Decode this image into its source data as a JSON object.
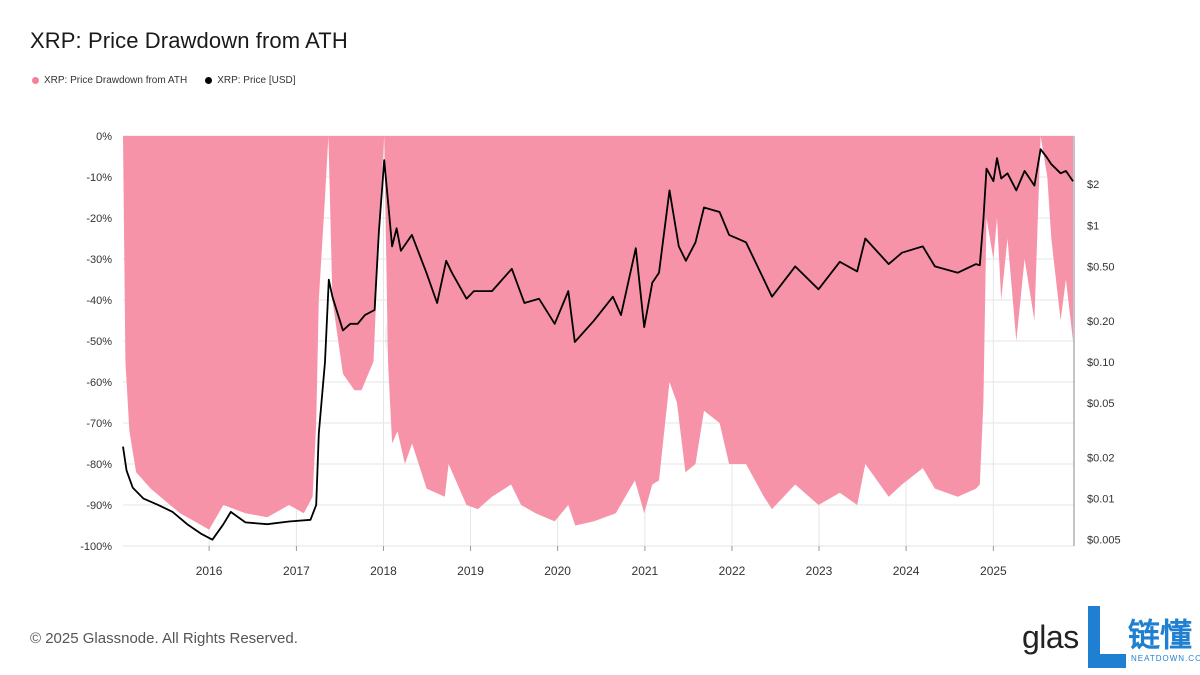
{
  "title": "XRP: Price Drawdown from ATH",
  "legend": [
    {
      "label": "XRP: Price Drawdown from ATH",
      "color": "#f77f9a"
    },
    {
      "label": "XRP: Price [USD]",
      "color": "#000000"
    }
  ],
  "watermark": "glassnode",
  "copyright": "© 2025 Glassnode. All Rights Reserved.",
  "logo": {
    "brand_text": "glas",
    "cn_text": "链懂",
    "sub_text": "NEATDOWN.COM"
  },
  "colors": {
    "drawdown": "#f793a9",
    "price": "#000000",
    "grid": "#e6e6e6"
  },
  "chart_data": {
    "type": "area",
    "x_ticks": [
      "2016",
      "2017",
      "2018",
      "2019",
      "2020",
      "2021",
      "2022",
      "2023",
      "2024",
      "2025"
    ],
    "y_left_ticks": [
      "0%",
      "-10%",
      "-20%",
      "-30%",
      "-40%",
      "-50%",
      "-60%",
      "-70%",
      "-80%",
      "-90%",
      "-100%"
    ],
    "y_right_ticks": [
      "$2",
      "$1",
      "$0.50",
      "$0.20",
      "$0.10",
      "$0.05",
      "$0.02",
      "$0.01",
      "$0.005"
    ],
    "y_left_range": [
      -100,
      0
    ],
    "y_right_scale": "log",
    "y_right_range": [
      0.0045,
      4.5
    ],
    "grid": true,
    "series": [
      {
        "name": "XRP: Price Drawdown from ATH",
        "unit": "%",
        "points": [
          [
            "2015-01-05",
            0
          ],
          [
            "2015-01-15",
            -55
          ],
          [
            "2015-02-01",
            -72
          ],
          [
            "2015-03-01",
            -82
          ],
          [
            "2015-05-01",
            -86
          ],
          [
            "2015-07-01",
            -89
          ],
          [
            "2015-09-01",
            -92
          ],
          [
            "2015-11-01",
            -94
          ],
          [
            "2016-01-01",
            -96
          ],
          [
            "2016-03-01",
            -90
          ],
          [
            "2016-06-01",
            -92
          ],
          [
            "2016-09-01",
            -93
          ],
          [
            "2016-12-01",
            -90
          ],
          [
            "2017-02-01",
            -92
          ],
          [
            "2017-03-10",
            -88
          ],
          [
            "2017-03-25",
            -70
          ],
          [
            "2017-04-05",
            -40
          ],
          [
            "2017-05-01",
            -15
          ],
          [
            "2017-05-15",
            0
          ],
          [
            "2017-06-01",
            -40
          ],
          [
            "2017-07-15",
            -58
          ],
          [
            "2017-09-01",
            -62
          ],
          [
            "2017-10-01",
            -62
          ],
          [
            "2017-11-20",
            -55
          ],
          [
            "2017-12-20",
            -15
          ],
          [
            "2018-01-04",
            0
          ],
          [
            "2018-01-20",
            -55
          ],
          [
            "2018-02-06",
            -75
          ],
          [
            "2018-03-01",
            -72
          ],
          [
            "2018-04-01",
            -80
          ],
          [
            "2018-05-01",
            -75
          ],
          [
            "2018-07-01",
            -86
          ],
          [
            "2018-09-15",
            -88
          ],
          [
            "2018-10-01",
            -80
          ],
          [
            "2018-12-15",
            -90
          ],
          [
            "2019-02-01",
            -91
          ],
          [
            "2019-04-01",
            -88
          ],
          [
            "2019-06-20",
            -85
          ],
          [
            "2019-08-01",
            -90
          ],
          [
            "2019-10-01",
            -92
          ],
          [
            "2019-12-20",
            -94
          ],
          [
            "2020-02-15",
            -90
          ],
          [
            "2020-03-15",
            -95
          ],
          [
            "2020-06-01",
            -94
          ],
          [
            "2020-09-01",
            -92
          ],
          [
            "2020-11-20",
            -84
          ],
          [
            "2020-12-29",
            -92
          ],
          [
            "2021-02-01",
            -85
          ],
          [
            "2021-03-01",
            -84
          ],
          [
            "2021-04-14",
            -60
          ],
          [
            "2021-05-15",
            -65
          ],
          [
            "2021-06-20",
            -82
          ],
          [
            "2021-08-01",
            -80
          ],
          [
            "2021-09-06",
            -67
          ],
          [
            "2021-11-10",
            -70
          ],
          [
            "2021-12-20",
            -80
          ],
          [
            "2022-03-01",
            -80
          ],
          [
            "2022-05-15",
            -88
          ],
          [
            "2022-06-18",
            -91
          ],
          [
            "2022-09-23",
            -85
          ],
          [
            "2022-12-30",
            -90
          ],
          [
            "2023-03-29",
            -87
          ],
          [
            "2023-06-10",
            -90
          ],
          [
            "2023-07-14",
            -80
          ],
          [
            "2023-10-20",
            -88
          ],
          [
            "2023-12-15",
            -85
          ],
          [
            "2024-03-11",
            -81
          ],
          [
            "2024-05-01",
            -86
          ],
          [
            "2024-08-05",
            -88
          ],
          [
            "2024-10-20",
            -86
          ],
          [
            "2024-11-05",
            -85
          ],
          [
            "2024-11-20",
            -65
          ],
          [
            "2024-12-03",
            -20
          ],
          [
            "2025-01-01",
            -30
          ],
          [
            "2025-01-16",
            -20
          ],
          [
            "2025-02-03",
            -40
          ],
          [
            "2025-03-01",
            -25
          ],
          [
            "2025-04-07",
            -50
          ],
          [
            "2025-05-12",
            -30
          ],
          [
            "2025-06-22",
            -45
          ],
          [
            "2025-07-18",
            0
          ],
          [
            "2025-08-15",
            -10
          ],
          [
            "2025-09-01",
            -25
          ],
          [
            "2025-10-10",
            -45
          ],
          [
            "2025-11-01",
            -35
          ],
          [
            "2025-12-01",
            -50
          ]
        ]
      },
      {
        "name": "XRP: Price [USD]",
        "unit": "USD",
        "points": [
          [
            "2015-01-05",
            0.024
          ],
          [
            "2015-01-20",
            0.016
          ],
          [
            "2015-02-15",
            0.012
          ],
          [
            "2015-04-01",
            0.01
          ],
          [
            "2015-06-01",
            0.009
          ],
          [
            "2015-08-01",
            0.008
          ],
          [
            "2015-10-01",
            0.0065
          ],
          [
            "2015-12-01",
            0.0055
          ],
          [
            "2016-01-15",
            0.005
          ],
          [
            "2016-03-01",
            0.0065
          ],
          [
            "2016-04-01",
            0.008
          ],
          [
            "2016-06-01",
            0.0067
          ],
          [
            "2016-09-01",
            0.0065
          ],
          [
            "2016-12-01",
            0.0068
          ],
          [
            "2017-03-01",
            0.007
          ],
          [
            "2017-03-25",
            0.009
          ],
          [
            "2017-04-05",
            0.03
          ],
          [
            "2017-05-01",
            0.1
          ],
          [
            "2017-05-17",
            0.4
          ],
          [
            "2017-06-01",
            0.3
          ],
          [
            "2017-07-15",
            0.17
          ],
          [
            "2017-08-15",
            0.19
          ],
          [
            "2017-09-15",
            0.19
          ],
          [
            "2017-10-15",
            0.22
          ],
          [
            "2017-11-25",
            0.24
          ],
          [
            "2017-12-13",
            0.9
          ],
          [
            "2018-01-04",
            3.0
          ],
          [
            "2018-01-20",
            1.5
          ],
          [
            "2018-02-06",
            0.7
          ],
          [
            "2018-02-25",
            0.95
          ],
          [
            "2018-03-15",
            0.65
          ],
          [
            "2018-04-30",
            0.85
          ],
          [
            "2018-06-30",
            0.45
          ],
          [
            "2018-08-14",
            0.27
          ],
          [
            "2018-09-21",
            0.55
          ],
          [
            "2018-10-15",
            0.45
          ],
          [
            "2018-12-15",
            0.29
          ],
          [
            "2019-01-15",
            0.33
          ],
          [
            "2019-04-01",
            0.33
          ],
          [
            "2019-06-23",
            0.48
          ],
          [
            "2019-08-15",
            0.27
          ],
          [
            "2019-10-15",
            0.29
          ],
          [
            "2019-12-20",
            0.19
          ],
          [
            "2020-02-15",
            0.33
          ],
          [
            "2020-03-13",
            0.14
          ],
          [
            "2020-06-01",
            0.2
          ],
          [
            "2020-08-20",
            0.3
          ],
          [
            "2020-09-23",
            0.22
          ],
          [
            "2020-11-24",
            0.68
          ],
          [
            "2020-12-29",
            0.18
          ],
          [
            "2021-02-01",
            0.38
          ],
          [
            "2021-03-01",
            0.45
          ],
          [
            "2021-04-14",
            1.8
          ],
          [
            "2021-05-23",
            0.7
          ],
          [
            "2021-06-22",
            0.55
          ],
          [
            "2021-08-01",
            0.75
          ],
          [
            "2021-09-06",
            1.35
          ],
          [
            "2021-11-10",
            1.25
          ],
          [
            "2021-12-20",
            0.85
          ],
          [
            "2022-03-01",
            0.75
          ],
          [
            "2022-05-15",
            0.4
          ],
          [
            "2022-06-18",
            0.3
          ],
          [
            "2022-09-23",
            0.5
          ],
          [
            "2022-12-30",
            0.34
          ],
          [
            "2023-03-29",
            0.54
          ],
          [
            "2023-06-10",
            0.46
          ],
          [
            "2023-07-14",
            0.8
          ],
          [
            "2023-10-20",
            0.52
          ],
          [
            "2023-12-15",
            0.63
          ],
          [
            "2024-03-11",
            0.7
          ],
          [
            "2024-05-01",
            0.5
          ],
          [
            "2024-08-05",
            0.45
          ],
          [
            "2024-10-20",
            0.52
          ],
          [
            "2024-11-05",
            0.51
          ],
          [
            "2024-11-20",
            1.1
          ],
          [
            "2024-12-03",
            2.6
          ],
          [
            "2025-01-01",
            2.1
          ],
          [
            "2025-01-16",
            3.1
          ],
          [
            "2025-02-03",
            2.2
          ],
          [
            "2025-03-01",
            2.4
          ],
          [
            "2025-04-07",
            1.8
          ],
          [
            "2025-05-12",
            2.5
          ],
          [
            "2025-06-22",
            1.95
          ],
          [
            "2025-07-18",
            3.6
          ],
          [
            "2025-08-15",
            3.1
          ],
          [
            "2025-09-01",
            2.8
          ],
          [
            "2025-10-10",
            2.4
          ],
          [
            "2025-11-01",
            2.5
          ],
          [
            "2025-12-01",
            2.1
          ]
        ]
      }
    ]
  }
}
